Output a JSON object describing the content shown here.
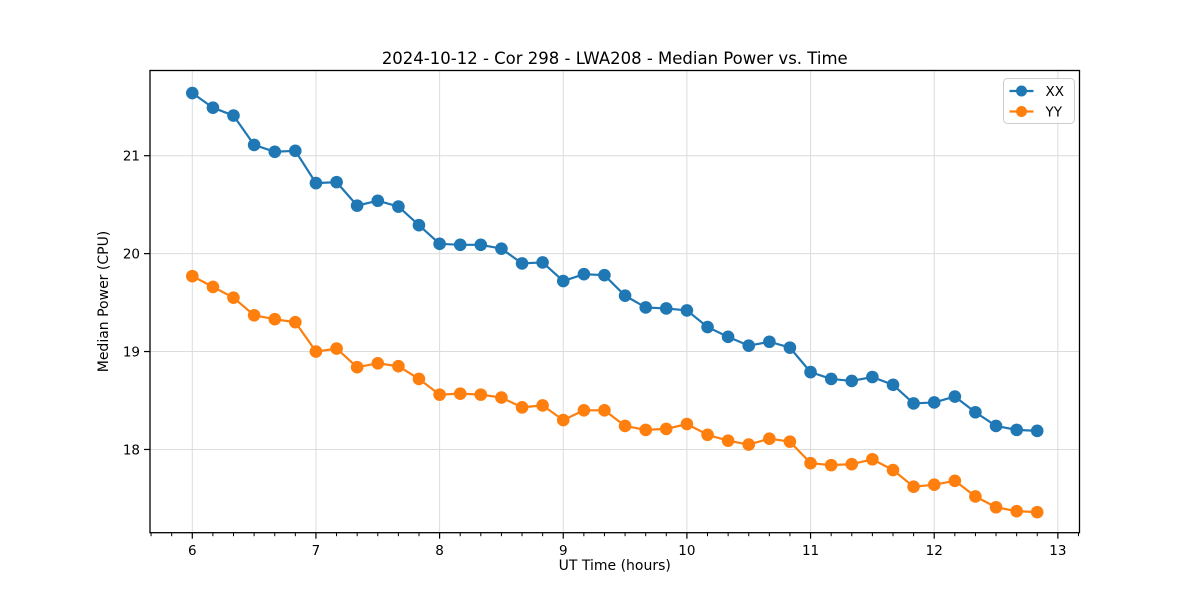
{
  "chart_data": {
    "type": "line",
    "title": "2024-10-12 - Cor 298 - LWA208 - Median Power vs. Time",
    "xlabel": "UT Time (hours)",
    "ylabel": "Median Power (CPU)",
    "xlim": [
      5.658,
      13.175
    ],
    "ylim": [
      17.15,
      21.87
    ],
    "x_ticks": [
      6,
      7,
      8,
      9,
      10,
      11,
      12,
      13
    ],
    "y_ticks": [
      18,
      19,
      20,
      21
    ],
    "x_minor_step": 0.166667,
    "grid": true,
    "grid_color": "#dcdcdc",
    "legend_position": "top-right",
    "background_color": "#ffffff",
    "x": [
      6.0,
      6.167,
      6.333,
      6.5,
      6.667,
      6.833,
      7.0,
      7.167,
      7.333,
      7.5,
      7.667,
      7.833,
      8.0,
      8.167,
      8.333,
      8.5,
      8.667,
      8.833,
      9.0,
      9.167,
      9.333,
      9.5,
      9.667,
      9.833,
      10.0,
      10.167,
      10.333,
      10.5,
      10.667,
      10.833,
      11.0,
      11.167,
      11.333,
      11.5,
      11.667,
      11.833,
      12.0,
      12.167,
      12.333,
      12.5,
      12.667,
      12.833
    ],
    "series": [
      {
        "name": "XX",
        "color": "#1f77b4",
        "values": [
          21.64,
          21.49,
          21.41,
          21.11,
          21.04,
          21.05,
          20.72,
          20.73,
          20.49,
          20.54,
          20.48,
          20.29,
          20.1,
          20.09,
          20.09,
          20.05,
          19.9,
          19.91,
          19.72,
          19.79,
          19.78,
          19.57,
          19.45,
          19.44,
          19.42,
          19.25,
          19.15,
          19.06,
          19.1,
          19.04,
          18.79,
          18.72,
          18.7,
          18.74,
          18.66,
          18.47,
          18.48,
          18.54,
          18.38,
          18.24,
          18.2,
          18.19
        ]
      },
      {
        "name": "YY",
        "color": "#ff7f0e",
        "values": [
          19.77,
          19.66,
          19.55,
          19.37,
          19.33,
          19.3,
          19.0,
          19.03,
          18.84,
          18.88,
          18.85,
          18.72,
          18.56,
          18.57,
          18.56,
          18.53,
          18.43,
          18.45,
          18.3,
          18.4,
          18.4,
          18.24,
          18.2,
          18.21,
          18.26,
          18.15,
          18.09,
          18.05,
          18.11,
          18.08,
          17.86,
          17.84,
          17.85,
          17.9,
          17.79,
          17.62,
          17.64,
          17.68,
          17.52,
          17.41,
          17.37,
          17.36
        ]
      }
    ]
  }
}
